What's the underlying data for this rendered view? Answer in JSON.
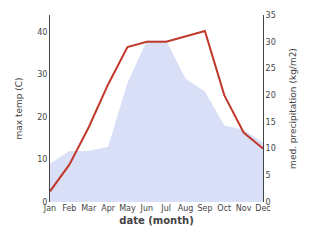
{
  "chart_data": {
    "type": "line",
    "xlabel": "date (month)",
    "ylabel": "max temp (C)",
    "y2label": "med. precipitation (kg/m2)",
    "categories": [
      "Jan",
      "Feb",
      "Mar",
      "Apr",
      "May",
      "Jun",
      "Jul",
      "Aug",
      "Sep",
      "Oct",
      "Nov",
      "Dec"
    ],
    "series": [
      {
        "type": "area",
        "color": "#b8c4f0",
        "values": [
          9,
          12,
          12,
          13,
          28,
          38,
          38,
          29,
          26,
          18,
          17,
          14
        ]
      },
      {
        "type": "line",
        "axis": "y2",
        "color": "#c0392b",
        "values": [
          2,
          7,
          14,
          22,
          29,
          30,
          30,
          31,
          32,
          20,
          13,
          10
        ]
      }
    ],
    "ylim": [
      0,
      44
    ],
    "yticks": [
      0,
      10,
      20,
      30,
      40
    ],
    "y2lim": [
      0,
      35
    ],
    "y2ticks": [
      0,
      5,
      10,
      15,
      20,
      25,
      30,
      35
    ],
    "grid": false
  }
}
